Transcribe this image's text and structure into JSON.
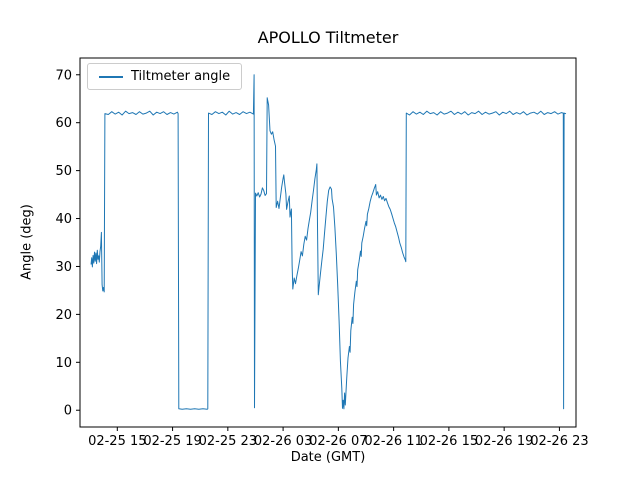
{
  "chart_data": {
    "type": "line",
    "title": "APOLLO Tiltmeter",
    "xlabel": "Date (GMT)",
    "ylabel": "Angle (deg)",
    "grid": false,
    "legend_position": "upper left",
    "x_encoding": "hours since 02-25 00:00 (GMT)",
    "xlim": [
      12.3,
      48.2
    ],
    "ylim": [
      -3.5,
      73.5
    ],
    "y_ticks": [
      0,
      10,
      20,
      30,
      40,
      50,
      60,
      70
    ],
    "x_ticks": [
      {
        "x": 15,
        "label": "02-25 15"
      },
      {
        "x": 19,
        "label": "02-25 19"
      },
      {
        "x": 23,
        "label": "02-25 23"
      },
      {
        "x": 27,
        "label": "02-26 03"
      },
      {
        "x": 31,
        "label": "02-26 07"
      },
      {
        "x": 35,
        "label": "02-26 11"
      },
      {
        "x": 39,
        "label": "02-26 15"
      },
      {
        "x": 43,
        "label": "02-26 19"
      },
      {
        "x": 47,
        "label": "02-26 23"
      }
    ],
    "series": [
      {
        "name": "Tiltmeter angle",
        "color": "#1f77b4",
        "points": [
          [
            13.1,
            30.5
          ],
          [
            13.15,
            31.8
          ],
          [
            13.2,
            29.9
          ],
          [
            13.25,
            32.3
          ],
          [
            13.3,
            30.7
          ],
          [
            13.35,
            33.0
          ],
          [
            13.4,
            31.1
          ],
          [
            13.45,
            32.8
          ],
          [
            13.5,
            30.6
          ],
          [
            13.55,
            33.4
          ],
          [
            13.6,
            31.5
          ],
          [
            13.65,
            32.2
          ],
          [
            13.7,
            30.9
          ],
          [
            13.75,
            33.1
          ],
          [
            13.8,
            34.2
          ],
          [
            13.85,
            37.1
          ],
          [
            13.9,
            26.2
          ],
          [
            13.95,
            24.9
          ],
          [
            14.0,
            25.6
          ],
          [
            14.05,
            24.7
          ],
          [
            14.1,
            61.9
          ],
          [
            14.35,
            61.7
          ],
          [
            14.6,
            62.3
          ],
          [
            14.85,
            61.8
          ],
          [
            15.1,
            62.2
          ],
          [
            15.35,
            61.6
          ],
          [
            15.6,
            62.4
          ],
          [
            15.85,
            61.9
          ],
          [
            16.1,
            62.1
          ],
          [
            16.35,
            61.7
          ],
          [
            16.6,
            62.3
          ],
          [
            16.85,
            61.8
          ],
          [
            17.1,
            62.0
          ],
          [
            17.35,
            62.4
          ],
          [
            17.6,
            61.6
          ],
          [
            17.85,
            62.2
          ],
          [
            18.1,
            61.9
          ],
          [
            18.35,
            62.3
          ],
          [
            18.6,
            61.7
          ],
          [
            18.85,
            62.1
          ],
          [
            19.1,
            61.8
          ],
          [
            19.35,
            62.2
          ],
          [
            19.4,
            61.9
          ],
          [
            19.45,
            0.3
          ],
          [
            19.7,
            0.2
          ],
          [
            20.0,
            0.3
          ],
          [
            20.3,
            0.2
          ],
          [
            20.6,
            0.3
          ],
          [
            20.9,
            0.2
          ],
          [
            21.2,
            0.3
          ],
          [
            21.5,
            0.2
          ],
          [
            21.55,
            0.3
          ],
          [
            21.6,
            62.0
          ],
          [
            21.85,
            61.7
          ],
          [
            22.1,
            62.3
          ],
          [
            22.35,
            61.9
          ],
          [
            22.6,
            62.2
          ],
          [
            22.85,
            61.6
          ],
          [
            23.1,
            62.4
          ],
          [
            23.35,
            61.8
          ],
          [
            23.6,
            62.1
          ],
          [
            23.85,
            61.7
          ],
          [
            24.1,
            62.3
          ],
          [
            24.35,
            61.9
          ],
          [
            24.6,
            62.2
          ],
          [
            24.85,
            61.8
          ],
          [
            24.9,
            70.0
          ],
          [
            24.93,
            0.5
          ],
          [
            25.0,
            45.3
          ],
          [
            25.1,
            44.7
          ],
          [
            25.2,
            45.4
          ],
          [
            25.3,
            44.5
          ],
          [
            25.4,
            45.1
          ],
          [
            25.5,
            46.4
          ],
          [
            25.6,
            45.8
          ],
          [
            25.7,
            44.8
          ],
          [
            25.8,
            45.2
          ],
          [
            25.85,
            65.2
          ],
          [
            25.95,
            63.7
          ],
          [
            26.05,
            58.3
          ],
          [
            26.15,
            57.6
          ],
          [
            26.25,
            58.1
          ],
          [
            26.35,
            56.4
          ],
          [
            26.45,
            55.1
          ],
          [
            26.5,
            42.3
          ],
          [
            26.6,
            43.6
          ],
          [
            26.7,
            42.1
          ],
          [
            26.8,
            44.3
          ],
          [
            26.9,
            46.6
          ],
          [
            27.0,
            48.4
          ],
          [
            27.05,
            49.1
          ],
          [
            27.1,
            47.6
          ],
          [
            27.2,
            45.1
          ],
          [
            27.25,
            41.9
          ],
          [
            27.35,
            43.4
          ],
          [
            27.45,
            44.7
          ],
          [
            27.5,
            40.3
          ],
          [
            27.6,
            42.0
          ],
          [
            27.65,
            30.4
          ],
          [
            27.7,
            25.3
          ],
          [
            27.8,
            27.6
          ],
          [
            27.9,
            26.4
          ],
          [
            28.0,
            28.1
          ],
          [
            28.1,
            29.6
          ],
          [
            28.2,
            31.3
          ],
          [
            28.3,
            33.1
          ],
          [
            28.4,
            32.2
          ],
          [
            28.5,
            34.6
          ],
          [
            28.6,
            36.3
          ],
          [
            28.7,
            35.5
          ],
          [
            28.8,
            37.9
          ],
          [
            28.9,
            39.6
          ],
          [
            29.0,
            41.3
          ],
          [
            29.1,
            43.7
          ],
          [
            29.2,
            45.9
          ],
          [
            29.3,
            48.3
          ],
          [
            29.4,
            50.2
          ],
          [
            29.45,
            51.4
          ],
          [
            29.5,
            36.6
          ],
          [
            29.55,
            24.1
          ],
          [
            29.6,
            25.6
          ],
          [
            29.7,
            28.4
          ],
          [
            29.8,
            31.1
          ],
          [
            29.9,
            33.6
          ],
          [
            30.0,
            36.9
          ],
          [
            30.1,
            40.3
          ],
          [
            30.2,
            43.6
          ],
          [
            30.3,
            45.9
          ],
          [
            30.4,
            46.6
          ],
          [
            30.5,
            46.1
          ],
          [
            30.55,
            44.1
          ],
          [
            30.65,
            42.4
          ],
          [
            30.75,
            38.1
          ],
          [
            30.85,
            32.6
          ],
          [
            30.95,
            26.1
          ],
          [
            31.05,
            18.6
          ],
          [
            31.15,
            10.3
          ],
          [
            31.25,
            4.6
          ],
          [
            31.3,
            0.4
          ],
          [
            31.35,
            2.1
          ],
          [
            31.4,
            0.3
          ],
          [
            31.45,
            3.6
          ],
          [
            31.5,
            1.1
          ],
          [
            31.6,
            6.6
          ],
          [
            31.7,
            10.9
          ],
          [
            31.8,
            13.3
          ],
          [
            31.85,
            12.1
          ],
          [
            31.9,
            16.6
          ],
          [
            32.0,
            19.4
          ],
          [
            32.05,
            18.1
          ],
          [
            32.1,
            22.1
          ],
          [
            32.2,
            24.7
          ],
          [
            32.3,
            26.9
          ],
          [
            32.35,
            25.8
          ],
          [
            32.4,
            29.3
          ],
          [
            32.5,
            31.1
          ],
          [
            32.6,
            33.2
          ],
          [
            32.65,
            32.1
          ],
          [
            32.7,
            34.9
          ],
          [
            32.8,
            36.3
          ],
          [
            32.9,
            38.0
          ],
          [
            33.0,
            39.4
          ],
          [
            33.05,
            38.5
          ],
          [
            33.1,
            40.9
          ],
          [
            33.2,
            42.1
          ],
          [
            33.3,
            43.5
          ],
          [
            33.4,
            44.6
          ],
          [
            33.5,
            45.4
          ],
          [
            33.6,
            46.3
          ],
          [
            33.7,
            47.1
          ],
          [
            33.75,
            44.9
          ],
          [
            33.85,
            45.6
          ],
          [
            33.95,
            44.3
          ],
          [
            34.05,
            44.9
          ],
          [
            34.15,
            44.0
          ],
          [
            34.25,
            44.6
          ],
          [
            34.35,
            43.7
          ],
          [
            34.45,
            44.2
          ],
          [
            34.55,
            43.3
          ],
          [
            34.65,
            42.5
          ],
          [
            34.75,
            41.9
          ],
          [
            34.85,
            41.0
          ],
          [
            34.95,
            40.1
          ],
          [
            35.05,
            39.1
          ],
          [
            35.15,
            38.3
          ],
          [
            35.25,
            37.2
          ],
          [
            35.35,
            36.1
          ],
          [
            35.45,
            34.9
          ],
          [
            35.55,
            34.0
          ],
          [
            35.65,
            32.9
          ],
          [
            35.75,
            32.0
          ],
          [
            35.85,
            31.3
          ],
          [
            35.88,
            31.0
          ],
          [
            35.92,
            62.0
          ],
          [
            36.15,
            61.6
          ],
          [
            36.4,
            62.3
          ],
          [
            36.65,
            61.8
          ],
          [
            36.9,
            62.2
          ],
          [
            37.15,
            61.7
          ],
          [
            37.4,
            62.4
          ],
          [
            37.65,
            61.9
          ],
          [
            37.9,
            62.1
          ],
          [
            38.15,
            61.6
          ],
          [
            38.4,
            62.3
          ],
          [
            38.65,
            61.8
          ],
          [
            38.9,
            62.0
          ],
          [
            39.15,
            62.4
          ],
          [
            39.4,
            61.7
          ],
          [
            39.65,
            62.2
          ],
          [
            39.9,
            61.8
          ],
          [
            40.15,
            62.3
          ],
          [
            40.4,
            61.6
          ],
          [
            40.65,
            62.1
          ],
          [
            40.9,
            61.9
          ],
          [
            41.15,
            62.4
          ],
          [
            41.4,
            61.7
          ],
          [
            41.65,
            62.2
          ],
          [
            41.9,
            61.8
          ],
          [
            42.15,
            62.0
          ],
          [
            42.4,
            62.3
          ],
          [
            42.65,
            61.6
          ],
          [
            42.9,
            62.2
          ],
          [
            43.15,
            61.9
          ],
          [
            43.4,
            62.4
          ],
          [
            43.65,
            61.7
          ],
          [
            43.9,
            62.1
          ],
          [
            44.15,
            61.8
          ],
          [
            44.4,
            62.3
          ],
          [
            44.65,
            61.6
          ],
          [
            44.9,
            62.0
          ],
          [
            45.15,
            62.2
          ],
          [
            45.4,
            61.8
          ],
          [
            45.65,
            62.4
          ],
          [
            45.9,
            61.7
          ],
          [
            46.15,
            62.1
          ],
          [
            46.4,
            61.9
          ],
          [
            46.65,
            62.3
          ],
          [
            46.9,
            61.8
          ],
          [
            47.15,
            62.1
          ],
          [
            47.28,
            62.0
          ],
          [
            47.3,
            0.3
          ],
          [
            47.34,
            62.0
          ],
          [
            47.45,
            61.9
          ]
        ]
      }
    ]
  }
}
